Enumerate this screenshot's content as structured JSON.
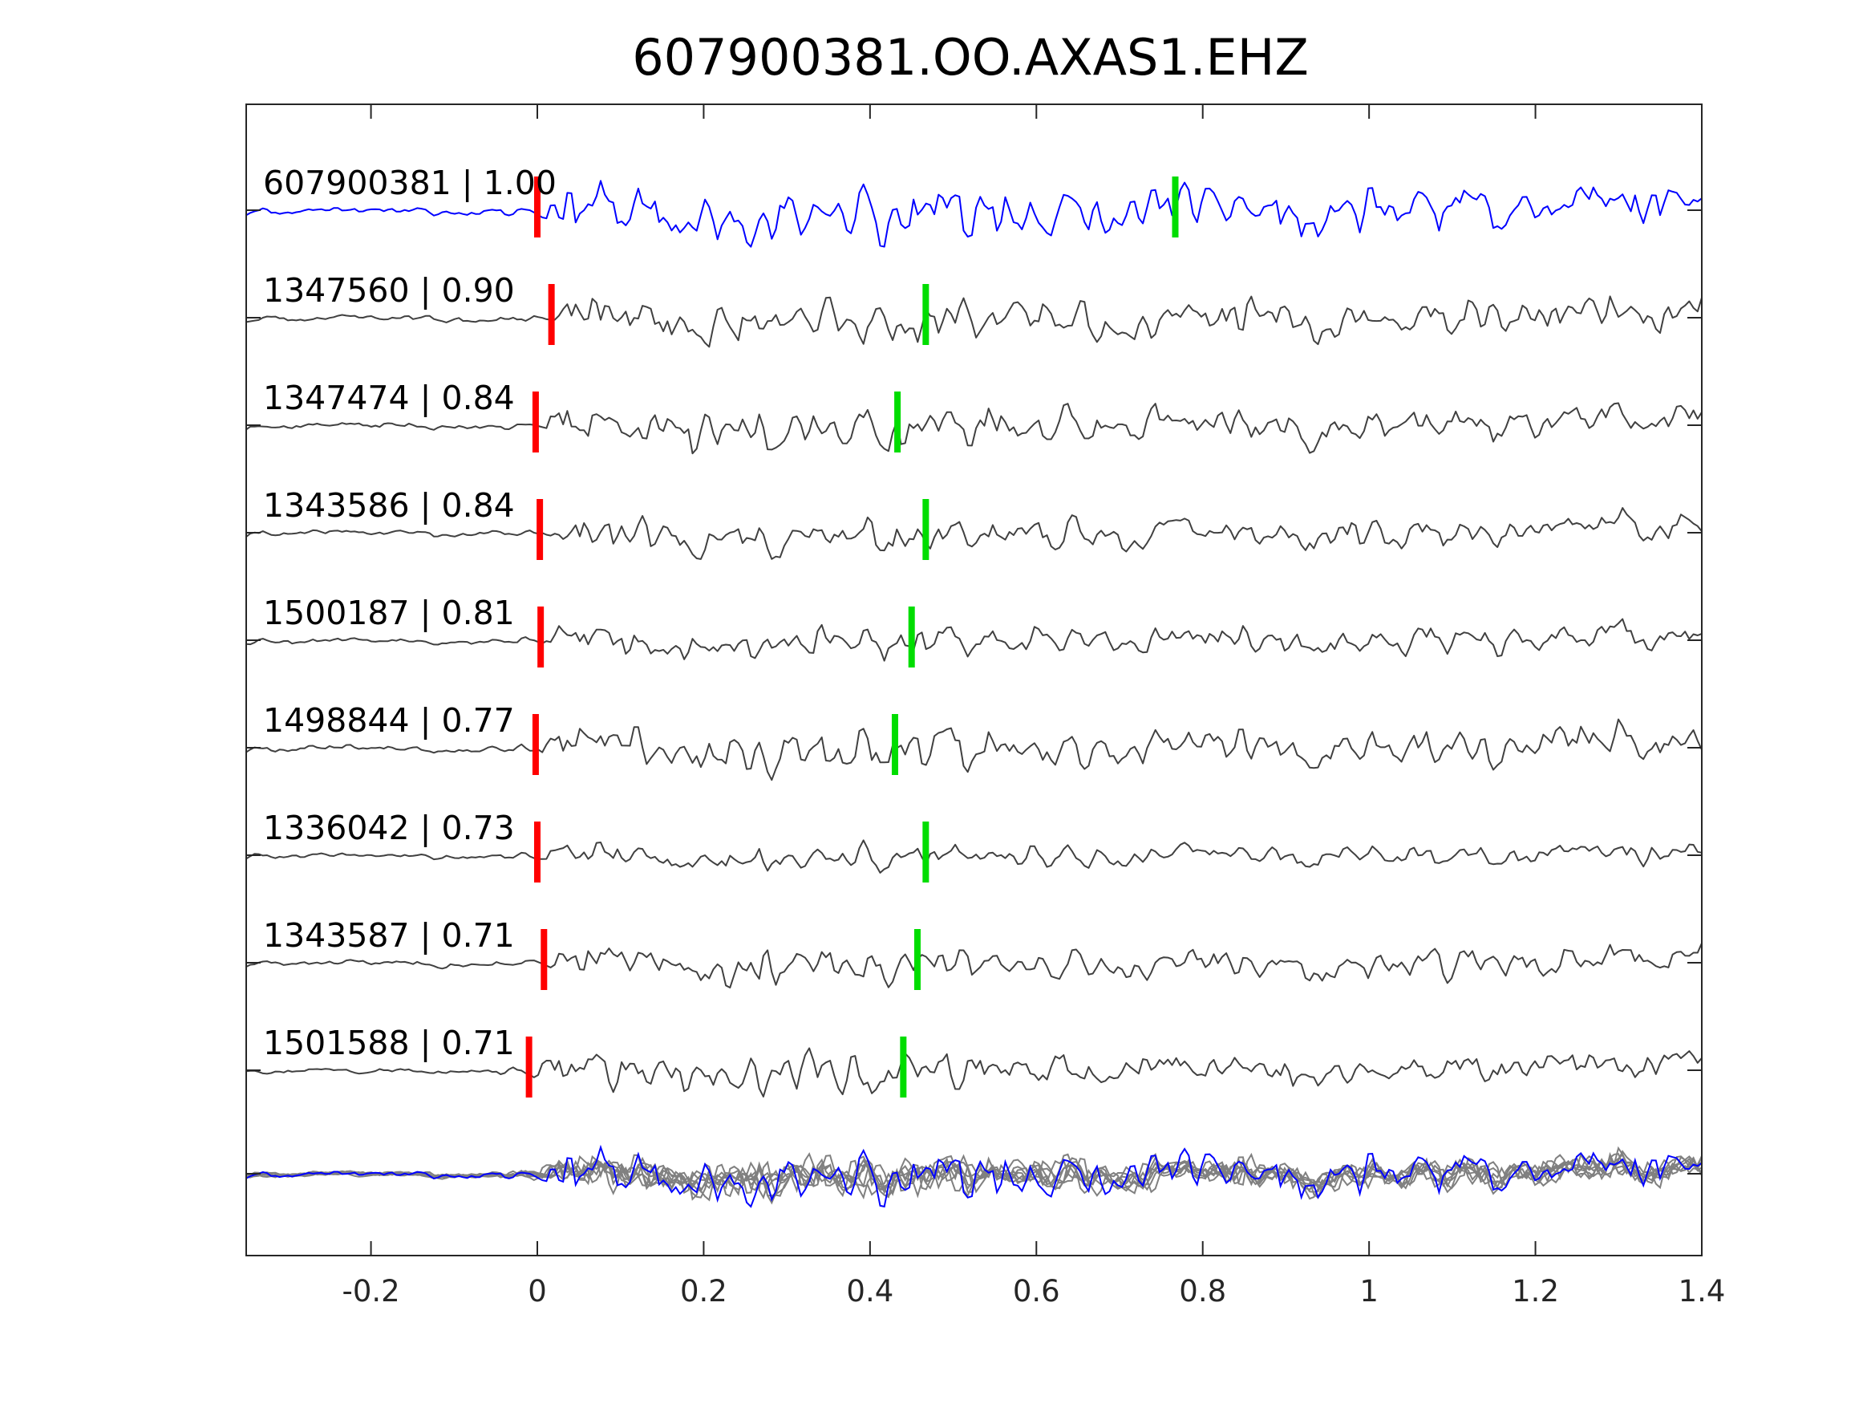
{
  "chart_data": {
    "type": "line",
    "title": "607900381.OO.AXAS1.EHZ",
    "xlabel": "",
    "ylabel": "",
    "xlim": [
      -0.35,
      1.4
    ],
    "x_ticks": [
      -0.2,
      0,
      0.2,
      0.4,
      0.6,
      0.8,
      1,
      1.2,
      1.4
    ],
    "x_tick_labels": [
      "-0.2",
      "0",
      "0.2",
      "0.4",
      "0.6",
      "0.8",
      "1",
      "1.2",
      "1.4"
    ],
    "y_axis_tick_labels_visible": false,
    "grid": false,
    "colors": {
      "template_trace": "#0000ff",
      "matched_trace": "#404040",
      "overlay_trace": "#808080",
      "p_pick": "#ff0000",
      "s_pick": "#00dd00",
      "axes": "#262626"
    },
    "traces": [
      {
        "label": "607900381 | 1.00",
        "event_id": "607900381",
        "cc": 1.0,
        "color": "#0000ff",
        "p_pick": 0.0,
        "s_pick": 0.767,
        "amp": 1.1,
        "onset": 1.0,
        "seed": 11
      },
      {
        "label": "1347560 | 0.90",
        "event_id": "1347560",
        "cc": 0.9,
        "color": "#404040",
        "p_pick": 0.017,
        "s_pick": 0.467,
        "amp": 0.95,
        "onset": 0.9,
        "seed": 23
      },
      {
        "label": "1347474 | 0.84",
        "event_id": "1347474",
        "cc": 0.84,
        "color": "#404040",
        "p_pick": -0.002,
        "s_pick": 0.433,
        "amp": 0.95,
        "onset": 0.9,
        "seed": 37
      },
      {
        "label": "1343586 | 0.84",
        "event_id": "1343586",
        "cc": 0.84,
        "color": "#404040",
        "p_pick": 0.003,
        "s_pick": 0.467,
        "amp": 0.9,
        "onset": 0.8,
        "seed": 41
      },
      {
        "label": "1500187 | 0.81",
        "event_id": "1500187",
        "cc": 0.81,
        "color": "#404040",
        "p_pick": 0.004,
        "s_pick": 0.45,
        "amp": 0.85,
        "onset": 0.8,
        "seed": 53
      },
      {
        "label": "1498844 | 0.77",
        "event_id": "1498844",
        "cc": 0.77,
        "color": "#404040",
        "p_pick": -0.002,
        "s_pick": 0.43,
        "amp": 1.0,
        "onset": 0.85,
        "seed": 67
      },
      {
        "label": "1336042 | 0.73",
        "event_id": "1336042",
        "cc": 0.73,
        "color": "#404040",
        "p_pick": 0.0,
        "s_pick": 0.467,
        "amp": 0.8,
        "onset": 0.6,
        "seed": 79
      },
      {
        "label": "1343587 | 0.71",
        "event_id": "1343587",
        "cc": 0.71,
        "color": "#404040",
        "p_pick": 0.008,
        "s_pick": 0.457,
        "amp": 0.9,
        "onset": 0.8,
        "seed": 83
      },
      {
        "label": "1501588 | 0.71",
        "event_id": "1501588",
        "cc": 0.71,
        "color": "#404040",
        "p_pick": -0.01,
        "s_pick": 0.44,
        "amp": 0.85,
        "onset": 0.85,
        "seed": 97
      }
    ],
    "overlay": {
      "description": "all traces overlaid",
      "template_color": "#0000ff",
      "others_color": "#808080"
    }
  }
}
